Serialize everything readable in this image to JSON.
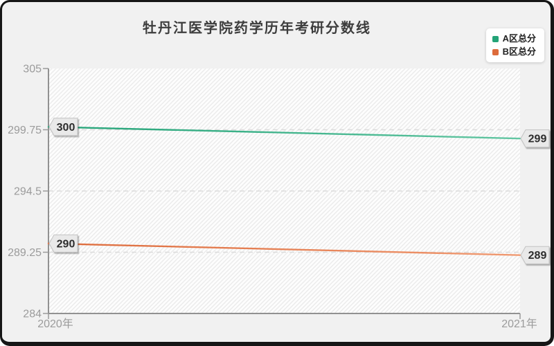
{
  "card": {
    "background": "#f1f1f1",
    "border_color": "#161616"
  },
  "chart_data": {
    "type": "line",
    "title": "牡丹江医学院药学历年考研分数线",
    "x": [
      "2020年",
      "2021年"
    ],
    "series": [
      {
        "name": "A区总分",
        "color": "#23a377",
        "color_light": "#62c6a2",
        "values": [
          300,
          299
        ],
        "point_labels": [
          "300",
          "299"
        ]
      },
      {
        "name": "B区总分",
        "color": "#dd6b3b",
        "color_light": "#f09a72",
        "values": [
          290,
          289
        ],
        "point_labels": [
          "290",
          "289"
        ]
      }
    ],
    "ylim": [
      284,
      305
    ],
    "yticks": [
      284,
      289.25,
      294.5,
      299.75,
      305
    ],
    "ytick_labels": [
      "284",
      "289.25",
      "294.5",
      "299.75",
      "305"
    ],
    "grid": "horizontal-dashed",
    "legend_position": "top-right",
    "plot_hatch": true
  },
  "style": {
    "axis_label_color": "#9b9b9b",
    "axis_line_color": "#919191",
    "grid_color": "#dcdcdc",
    "hatch_line_color": "#ebebeb",
    "plot_bg": "#fdfdfd",
    "flag_bg": "#e9e9e9",
    "flag_border": "#c2c2c2",
    "flag_text_color": "#2d2d2d"
  }
}
